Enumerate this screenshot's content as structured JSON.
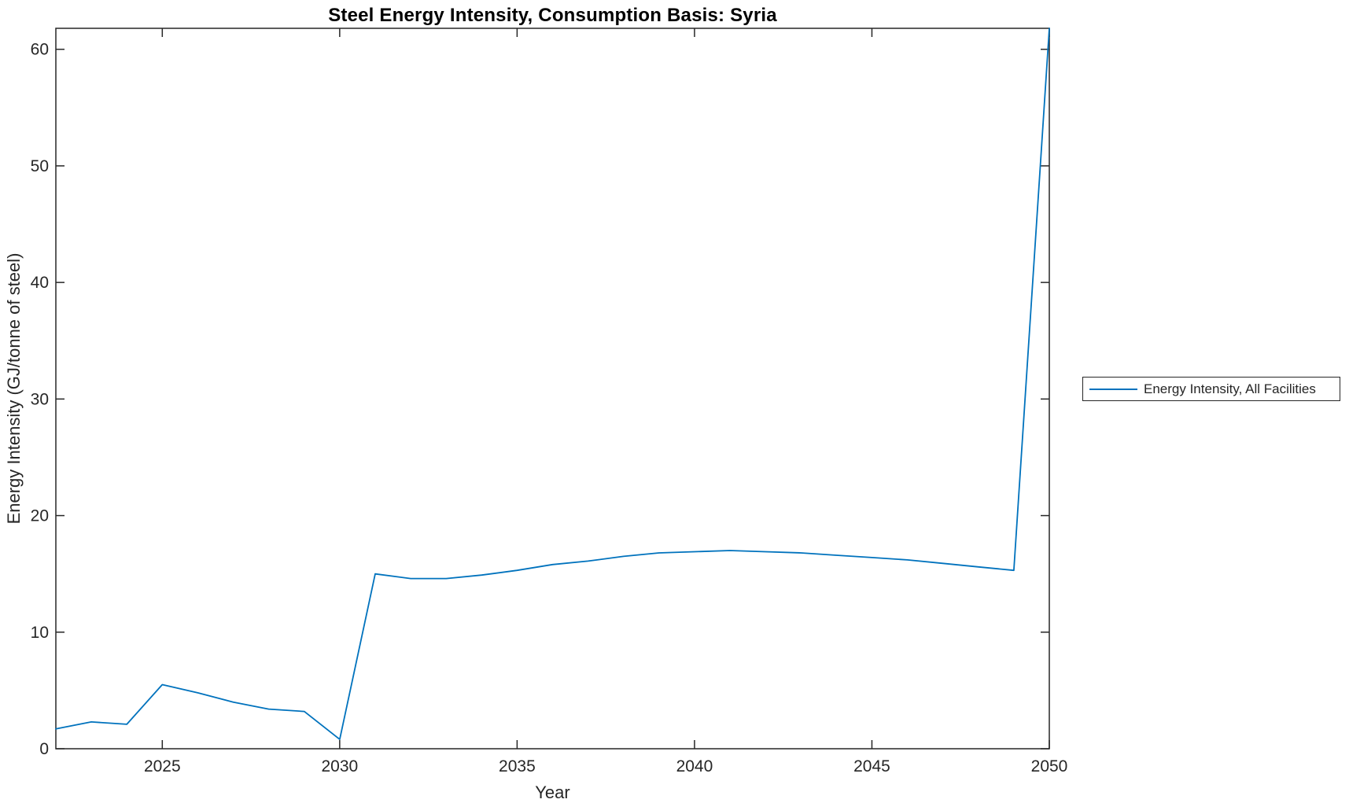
{
  "chart_data": {
    "type": "line",
    "title": "Steel Energy Intensity, Consumption Basis: Syria",
    "xlabel": "Year",
    "ylabel": "Energy Intensity (GJ/tonne of steel)",
    "xlim": [
      2022,
      2050
    ],
    "ylim": [
      0,
      61.8
    ],
    "xticks": [
      2025,
      2030,
      2035,
      2040,
      2045,
      2050
    ],
    "yticks": [
      0,
      10,
      20,
      30,
      40,
      50,
      60
    ],
    "grid": false,
    "box": true,
    "tick_direction": "in",
    "axis_color": "#262626",
    "background": "#ffffff",
    "legend_position": "right-outside",
    "series": [
      {
        "name": "Energy Intensity, All Facilities",
        "color": "#0072BD",
        "x": [
          2022,
          2023,
          2024,
          2025,
          2026,
          2027,
          2028,
          2029,
          2030,
          2031,
          2032,
          2033,
          2034,
          2035,
          2036,
          2037,
          2038,
          2039,
          2040,
          2041,
          2042,
          2043,
          2044,
          2045,
          2046,
          2047,
          2048,
          2049,
          2050
        ],
        "values": [
          1.7,
          2.3,
          2.1,
          5.5,
          4.8,
          4.0,
          3.4,
          3.2,
          0.8,
          15.0,
          14.6,
          14.6,
          14.9,
          15.3,
          15.8,
          16.1,
          16.5,
          16.8,
          16.9,
          17.0,
          16.9,
          16.8,
          16.6,
          16.4,
          16.2,
          15.9,
          15.6,
          15.3,
          61.8
        ]
      }
    ]
  }
}
